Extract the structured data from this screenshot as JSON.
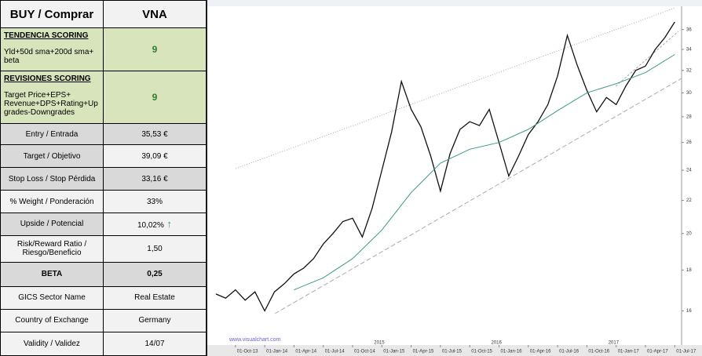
{
  "table": {
    "header": [
      "BUY / Comprar",
      "VNA"
    ],
    "rows": [
      {
        "title": "TENDENCIA SCORING",
        "label": "Yld+50d sma+200d  sma+ beta",
        "value": "9"
      },
      {
        "title": "REVISIONES SCORING",
        "label": "Target Price+EPS+ Revenue+DPS+Rating+Up grades-Downgrades",
        "value": "9"
      },
      {
        "label": "Entry / Entrada",
        "value": "35,53 €"
      },
      {
        "label": "Target / Objetivo",
        "value": "39,09 €"
      },
      {
        "label": "Stop Loss / Stop Pérdida",
        "value": "33,16 €"
      },
      {
        "label": "% Weight / Ponderación",
        "value": "33%"
      },
      {
        "label": "Upside / Potencial",
        "value": "10,02%"
      },
      {
        "label": "Risk/Reward  Ratio / Riesgo/Beneficio",
        "value": "1,50"
      },
      {
        "label": "BETA",
        "value": "0,25"
      },
      {
        "label": "GICS Sector Name",
        "value": "Real Estate"
      },
      {
        "label": "Country of Exchange",
        "value": "Germany"
      },
      {
        "label": "Validity / Validez",
        "value": "14/07"
      }
    ]
  },
  "chart_data": {
    "type": "line",
    "log_scale": true,
    "watermark": "www.visualchart.com",
    "x": [
      -2,
      -1,
      0,
      1,
      2,
      3,
      4,
      5,
      6,
      7,
      8,
      9,
      10,
      11,
      12,
      13,
      14,
      15,
      16,
      17,
      18,
      19,
      20,
      21,
      22,
      23,
      24,
      25,
      26,
      27,
      28,
      29,
      30,
      31,
      32,
      33,
      34,
      35,
      36,
      37,
      38,
      39,
      40,
      41,
      42,
      43,
      44,
      45
    ],
    "series": [
      {
        "color": "#111111",
        "values": [
          16.8,
          16.6,
          17.0,
          16.5,
          16.9,
          16.0,
          16.9,
          17.3,
          17.8,
          18.1,
          18.6,
          19.4,
          20.0,
          20.7,
          20.9,
          19.8,
          21.5,
          24.0,
          26.8,
          31.0,
          28.6,
          27.2,
          25.0,
          22.6,
          25.2,
          27.0,
          27.6,
          27.3,
          28.6,
          26.0,
          23.6,
          25.0,
          26.6,
          27.6,
          29.0,
          31.5,
          35.4,
          32.5,
          30.2,
          28.4,
          29.6,
          29.0,
          30.6,
          32.0,
          32.4,
          34.0,
          35.2,
          36.8
        ]
      },
      {
        "color": "#3a9a8a",
        "x": [
          6,
          9,
          12,
          15,
          18,
          21,
          24,
          27,
          30,
          33,
          36,
          39,
          42,
          45
        ],
        "values": [
          17.0,
          17.6,
          18.6,
          20.2,
          22.5,
          24.5,
          25.5,
          26.0,
          27.0,
          28.5,
          30.0,
          30.8,
          31.8,
          33.5
        ]
      }
    ],
    "xlim": [
      -2.8,
      45.7
    ],
    "xticks": [
      {
        "value": 0,
        "label": "01-Oct-13"
      },
      {
        "value": 3,
        "label": "01-Jan-14"
      },
      {
        "value": 6,
        "label": "01-Apr-14"
      },
      {
        "value": 9,
        "label": "01-Jul-14"
      },
      {
        "value": 12,
        "label": "01-Oct-14"
      },
      {
        "value": 15,
        "label": "01-Jan-15"
      },
      {
        "value": 18,
        "label": "01-Apr-15"
      },
      {
        "value": 21,
        "label": "01-Jul-15"
      },
      {
        "value": 24,
        "label": "01-Oct-15"
      },
      {
        "value": 27,
        "label": "01-Jan-16"
      },
      {
        "value": 30,
        "label": "01-Apr-16"
      },
      {
        "value": 33,
        "label": "01-Jul-16"
      },
      {
        "value": 36,
        "label": "01-Oct-16"
      },
      {
        "value": 39,
        "label": "01-Jan-17"
      },
      {
        "value": 42,
        "label": "01-Apr-17"
      },
      {
        "value": 45,
        "label": "01-Jul-17"
      }
    ],
    "year_markers": [
      {
        "value": 15,
        "label": "2015"
      },
      {
        "value": 27,
        "label": "2016"
      },
      {
        "value": 39,
        "label": "2017"
      }
    ],
    "ylim": [
      14.5,
      38.5
    ],
    "yticks": [
      16,
      18,
      20,
      22,
      24,
      26,
      28,
      30,
      32,
      34,
      36
    ]
  }
}
